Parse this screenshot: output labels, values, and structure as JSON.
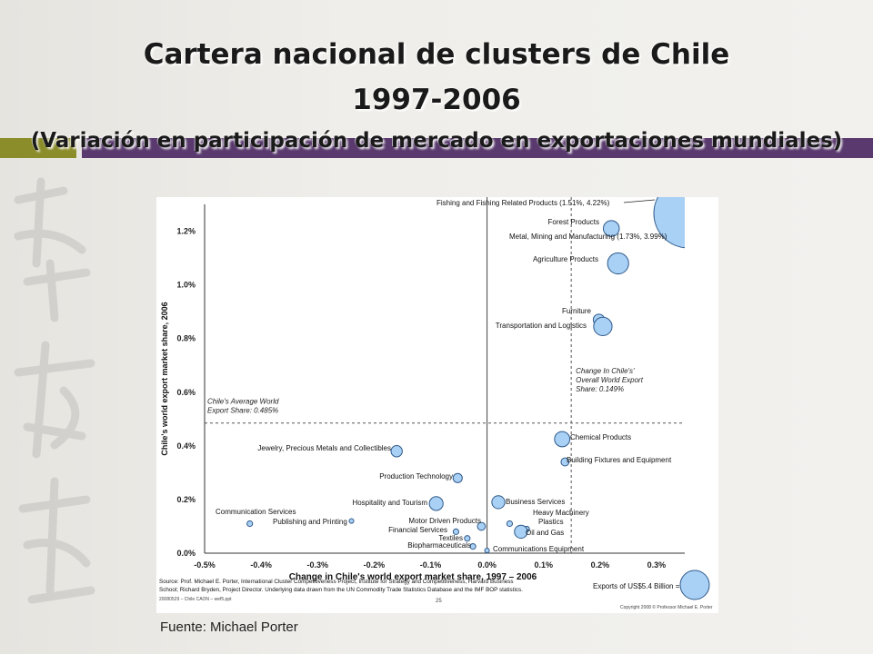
{
  "slide": {
    "title_line1": "Cartera nacional de clusters de Chile",
    "title_line2": "1997-2006",
    "title_line3": "(Variación en participación de mercado en exportaciones mundiales)",
    "source": "Fuente: Michael Porter",
    "colors": {
      "accent_olive": "#8b8c2a",
      "accent_purple": "#5a3a6e",
      "bubble_fill": "#a9d0f5",
      "bubble_stroke": "#2f5a8a"
    }
  },
  "chart_data": {
    "type": "scatter",
    "xlabel": "Change in Chile's world export market share, 1997 – 2006",
    "ylabel": "Chile's  world export market share, 2006",
    "xlim": [
      -0.5,
      0.35
    ],
    "ylim": [
      0,
      1.3
    ],
    "xticks": [
      "-0.5%",
      "-0.4%",
      "-0.3%",
      "-0.2%",
      "-0.1%",
      "0.0%",
      "0.1%",
      "0.2%",
      "0.3%"
    ],
    "yticks": [
      "0.0%",
      "0.2%",
      "0.4%",
      "0.6%",
      "0.8%",
      "1.0%",
      "1.2%"
    ],
    "avg_line": {
      "y": 0.485,
      "label_line1": "Chile's Average World",
      "label_line2": "Export Share: 0.485%"
    },
    "change_line": {
      "x": 0.149,
      "label_line1": "Change In Chile's'",
      "label_line2": "Overall World Export",
      "label_line3": "Share:  0.149%"
    },
    "points": [
      {
        "label": "Fishing and Fishing Related Products (1.51%, 4.22%)",
        "x": 0.35,
        "y": 1.3,
        "size": 5
      },
      {
        "label": "Forest Products",
        "x": 0.22,
        "y": 1.21,
        "size": 1.2
      },
      {
        "label": "Metal, Mining and Manufacturing (1.73%, 3.99%)",
        "x": 0.35,
        "y": 1.3,
        "size": 0
      },
      {
        "label": "Agriculture Products",
        "x": 0.232,
        "y": 1.08,
        "size": 2.1
      },
      {
        "label": "Furniture",
        "x": 0.198,
        "y": 0.87,
        "size": 0.6
      },
      {
        "label": "Transportation and Logistics",
        "x": 0.205,
        "y": 0.845,
        "size": 1.6
      },
      {
        "label": "Chemical Products",
        "x": 0.133,
        "y": 0.425,
        "size": 1.1
      },
      {
        "label": "Building Fixtures and Equipment",
        "x": 0.138,
        "y": 0.34,
        "size": 0.3
      },
      {
        "label": "Jewelry, Precious Metals and Collectibles",
        "x": -0.16,
        "y": 0.38,
        "size": 0.6
      },
      {
        "label": "Production Technology",
        "x": -0.052,
        "y": 0.28,
        "size": 0.4
      },
      {
        "label": "Hospitality and Tourism",
        "x": -0.09,
        "y": 0.185,
        "size": 0.9
      },
      {
        "label": "Business Services",
        "x": 0.02,
        "y": 0.19,
        "size": 0.8
      },
      {
        "label": "Heavy Machinery",
        "x": 0.04,
        "y": 0.11,
        "size": 0.15
      },
      {
        "label": "Plastics",
        "x": 0.07,
        "y": 0.09,
        "size": 0.15
      },
      {
        "label": "Oil and Gas",
        "x": 0.06,
        "y": 0.08,
        "size": 0.8
      },
      {
        "label": "Motor Driven Products",
        "x": -0.01,
        "y": 0.1,
        "size": 0.3
      },
      {
        "label": "Financial Services",
        "x": -0.055,
        "y": 0.08,
        "size": 0.15
      },
      {
        "label": "Textiles",
        "x": -0.035,
        "y": 0.055,
        "size": 0.15
      },
      {
        "label": "Biopharmaceuticals",
        "x": -0.025,
        "y": 0.025,
        "size": 0.15
      },
      {
        "label": "Communications Equipment",
        "x": 0.0,
        "y": 0.01,
        "size": 0.1
      },
      {
        "label": "Communication Services",
        "x": -0.42,
        "y": 0.11,
        "size": 0.15
      },
      {
        "label": "Publishing and Printing",
        "x": -0.24,
        "y": 0.12,
        "size": 0.1
      }
    ],
    "bubble_legend": "Exports of US$5.4 Billion =",
    "source_note": "Source: Prof. Michael E. Porter, International Cluster Competitiveness Project, Institute for Strategy and Competitiveness, Harvard Business School; Richard Bryden, Project Director. Underlying data drawn from the UN Commodity Trade Statistics Database and the IMF BOP statistics.",
    "file_note": "20080529 – Chile CAON – wef5.ppt",
    "page_num": "25",
    "copyright": "Copyright 2008 © Professor Michael E. Porter"
  }
}
